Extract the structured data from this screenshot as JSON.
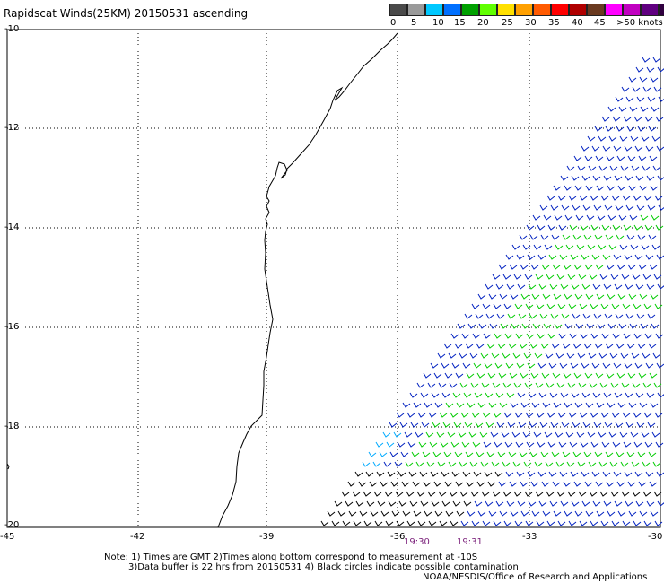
{
  "title": "Rapidscat Winds(25KM) 20150531 ascending",
  "legend": {
    "labels": [
      "0",
      "5",
      "10",
      "15",
      "20",
      "25",
      "30",
      "35",
      "40",
      "45",
      ">50 knots"
    ],
    "colors": [
      "#4a4a4a",
      "#9a9a9a",
      "#00c8ff",
      "#0070ff",
      "#00a000",
      "#60ff00",
      "#ffe000",
      "#ffa000",
      "#ff5a00",
      "#ff0000",
      "#b00000",
      "#6a3a20",
      "#ff00ff",
      "#c000c0",
      "#600080",
      "#300040"
    ]
  },
  "axes": {
    "y_labels": [
      "-10",
      "-12",
      "-14",
      "-16",
      "-18",
      "-20"
    ],
    "x_labels": [
      "-45",
      "-42",
      "-39",
      "-36",
      "-33",
      "-30"
    ]
  },
  "times": [
    "19:30",
    "19:31"
  ],
  "notes": {
    "line1": "Note: 1) Times are GMT 2)Times along bottom correspond to measurement at -10S",
    "line2": "3)Data buffer is 22 hrs from 20150531 4) Black circles indicate possible contamination",
    "line3": "NOAA/NESDIS/Office of Research and Applications"
  },
  "wind_colors": {
    "low": "#000000",
    "mid": "#0020c0",
    "high": "#00cc00",
    "light": "#00aaff"
  }
}
